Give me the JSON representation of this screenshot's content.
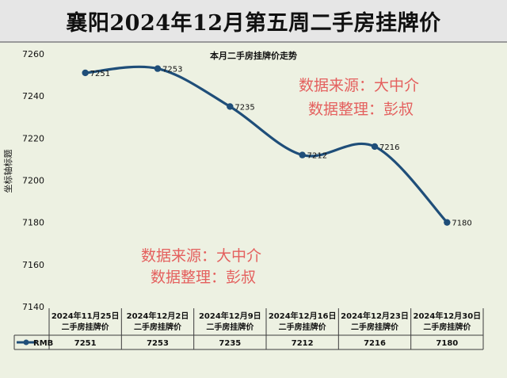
{
  "banner_title": "襄阳2024年12月第五周二手房挂牌价",
  "watermark": {
    "line1": "数据来源：大中介",
    "line2": "数据整理：彭叔"
  },
  "colors": {
    "line": "#1f4e79",
    "background": "#edf1e2",
    "watermark": "#e4605e"
  },
  "chart_data": {
    "type": "line",
    "title": "本月二手房挂牌价走势",
    "ylabel": "坐标轴标题",
    "xlabel": "",
    "ylim": [
      7140,
      7260
    ],
    "yticks": [
      7140,
      7160,
      7180,
      7200,
      7220,
      7240,
      7260
    ],
    "categories": [
      [
        "2024年11月25日",
        "二手房挂牌价"
      ],
      [
        "2024年12月2日",
        "二手房挂牌价"
      ],
      [
        "2024年12月9日",
        "二手房挂牌价"
      ],
      [
        "2024年12月16日",
        "二手房挂牌价"
      ],
      [
        "2024年12月23日",
        "二手房挂牌价"
      ],
      [
        "2024年12月30日",
        "二手房挂牌价"
      ]
    ],
    "series": [
      {
        "name": "RMB",
        "values": [
          7251,
          7253,
          7235,
          7212,
          7216,
          7180
        ]
      }
    ],
    "smooth": true,
    "data_labels": true,
    "legend": "data-table"
  }
}
